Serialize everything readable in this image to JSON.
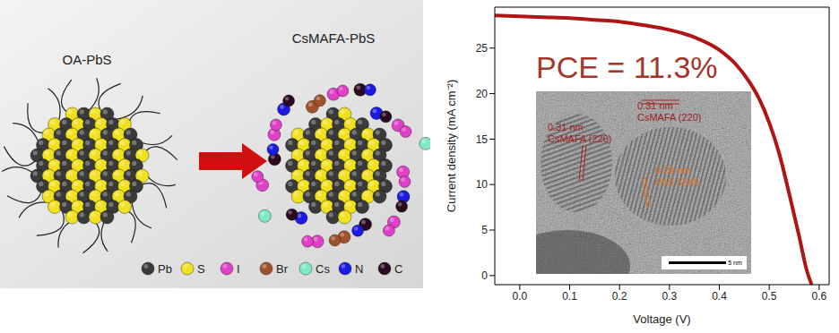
{
  "chart_data": {
    "type": "line",
    "x_label": "Voltage (V)",
    "y_label": "Current density (mA cm⁻²)",
    "annotation": "PCE = 11.3%",
    "color": "#b01515",
    "x": [
      -0.05,
      0,
      0.05,
      0.1,
      0.15,
      0.2,
      0.25,
      0.3,
      0.35,
      0.4,
      0.43,
      0.46,
      0.48,
      0.5,
      0.52,
      0.54,
      0.56,
      0.575,
      0.585
    ],
    "values": [
      28.6,
      28.5,
      28.4,
      28.3,
      28.1,
      27.9,
      27.5,
      27.0,
      26.2,
      24.8,
      23.4,
      21.3,
      19.4,
      16.8,
      13.4,
      9.0,
      4.3,
      0.6,
      -1
    ],
    "xlim": [
      -0.05,
      0.62
    ],
    "xticks": [
      {
        "value": 0,
        "label": "0.0"
      },
      0.1,
      0.2,
      0.3,
      0.4,
      0.5,
      0.6
    ],
    "ylim": [
      -1,
      29.5
    ],
    "yticks": [
      0,
      5,
      10,
      15,
      20,
      25
    ]
  },
  "diagram": {
    "before": "OA-PbS",
    "after": "CsMAFA-PbS",
    "legend": [
      {
        "label": "Pb",
        "color": "#3a3a3a"
      },
      {
        "label": "S",
        "color": "#f0e020"
      },
      {
        "label": "I",
        "color": "#e040c8"
      },
      {
        "label": "Br",
        "color": "#a0522d"
      },
      {
        "label": "Cs",
        "color": "#80e8c8"
      },
      {
        "label": "N",
        "color": "#1a1ae0"
      },
      {
        "label": "C",
        "color": "#2a0a20"
      }
    ]
  },
  "inset": {
    "labels": [
      {
        "lines": [
          "0.31 nm",
          "CsMAFA (220)"
        ],
        "color": "#a02020"
      },
      {
        "lines": [
          "0.31 nm",
          "CsMAFA (220)"
        ],
        "color": "#a02020"
      },
      {
        "lines": [
          "0.29 nm",
          "PbS (200)"
        ],
        "color": "#e07020"
      }
    ],
    "scale_bar": "5 nm"
  }
}
